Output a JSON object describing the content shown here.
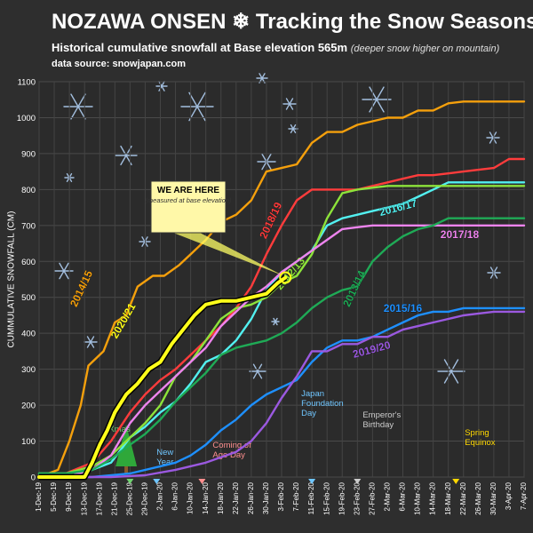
{
  "header": {
    "title": "NOZAWA ONSEN ❄ Tracking the Snow Seasons",
    "subtitle": "Historical cumulative snowfall at Base elevation 565m",
    "subtitle_note": "(deeper snow higher on mountain)",
    "source": "data source: snowjapan.com"
  },
  "callout": {
    "heading": "WE ARE HERE",
    "note": "(measured at base elevation)",
    "date": "4-Feb-20",
    "value": 555
  },
  "chart_data": {
    "type": "line",
    "title": "NOZAWA ONSEN ❄ Tracking the Snow Seasons",
    "ylabel": "CUMMULATIVE SNOWFALL  (CM)",
    "xlabel": "",
    "ylim": [
      0,
      1100
    ],
    "yticks": [
      0,
      100,
      200,
      300,
      400,
      500,
      600,
      700,
      800,
      900,
      1000,
      1100
    ],
    "xlim": [
      "1-Dec-19",
      "7-Apr-20"
    ],
    "x_tick_labels": [
      "1-Dec-19",
      "5-Dec-19",
      "9-Dec-19",
      "13-Dec-19",
      "17-Dec-19",
      "21-Dec-19",
      "25-Dec-19",
      "29-Dec-19",
      "2-Jan-20",
      "6-Jan-20",
      "10-Jan-20",
      "14-Jan-20",
      "18-Jan-20",
      "22-Jan-20",
      "26-Jan-20",
      "30-Jan-20",
      "3-Feb-20",
      "7-Feb-20",
      "11-Feb-20",
      "15-Feb-20",
      "19-Feb-20",
      "23-Feb-20",
      "27-Feb-20",
      "2-Mar-20",
      "6-Mar-20",
      "10-Mar-20",
      "14-Mar-20",
      "18-Mar-20",
      "22-Mar-20",
      "26-Mar-20",
      "30-Mar-20",
      "3-Apr-20",
      "7-Apr-20"
    ],
    "grid": true,
    "legend": "inline labels",
    "events": [
      {
        "label": "Xmas",
        "date": "25-Dec-19",
        "color": "#6fd36f",
        "marker": "#6fd36f"
      },
      {
        "label": "New Year",
        "date": "1-Jan-20",
        "color": "#6fc6ff",
        "marker": "#6fc6ff"
      },
      {
        "label": "Coming of Age Day",
        "date": "13-Jan-20",
        "color": "#ff8f8f",
        "marker": "#ff8f8f"
      },
      {
        "label": "Japan Foundation Day",
        "date": "11-Feb-20",
        "color": "#6fc6ff",
        "marker": "#6fc6ff"
      },
      {
        "label": "Emperor's Birthday",
        "date": "23-Feb-20",
        "color": "#cccccc",
        "marker": "#cccccc"
      },
      {
        "label": "Spring Equinox",
        "date": "20-Mar-20",
        "color": "#ffd800",
        "marker": "#ffd800"
      }
    ],
    "series": [
      {
        "name": "2014/15",
        "color": "#f5a00c",
        "label_date": "13-Dec-19",
        "label_value": 520,
        "label_angle": -65,
        "points": [
          [
            "1-Dec-19",
            0
          ],
          [
            "6-Dec-19",
            20
          ],
          [
            "9-Dec-19",
            100
          ],
          [
            "12-Dec-19",
            200
          ],
          [
            "14-Dec-19",
            310
          ],
          [
            "18-Dec-19",
            350
          ],
          [
            "21-Dec-19",
            430
          ],
          [
            "24-Dec-19",
            450
          ],
          [
            "27-Dec-19",
            530
          ],
          [
            "31-Dec-19",
            560
          ],
          [
            "3-Jan-20",
            560
          ],
          [
            "7-Jan-20",
            590
          ],
          [
            "10-Jan-20",
            620
          ],
          [
            "14-Jan-20",
            660
          ],
          [
            "18-Jan-20",
            710
          ],
          [
            "22-Jan-20",
            730
          ],
          [
            "26-Jan-20",
            770
          ],
          [
            "30-Jan-20",
            850
          ],
          [
            "3-Feb-20",
            860
          ],
          [
            "7-Feb-20",
            870
          ],
          [
            "11-Feb-20",
            930
          ],
          [
            "15-Feb-20",
            960
          ],
          [
            "19-Feb-20",
            960
          ],
          [
            "23-Feb-20",
            980
          ],
          [
            "27-Feb-20",
            990
          ],
          [
            "2-Mar-20",
            1000
          ],
          [
            "6-Mar-20",
            1000
          ],
          [
            "10-Mar-20",
            1020
          ],
          [
            "14-Mar-20",
            1020
          ],
          [
            "18-Mar-20",
            1040
          ],
          [
            "22-Mar-20",
            1045
          ],
          [
            "26-Mar-20",
            1045
          ],
          [
            "30-Mar-20",
            1045
          ],
          [
            "7-Apr-20",
            1045
          ]
        ]
      },
      {
        "name": "2018/19",
        "color": "#ff3c3c",
        "label_date": "1-Feb-20",
        "label_value": 710,
        "label_angle": -65,
        "points": [
          [
            "1-Dec-19",
            0
          ],
          [
            "8-Dec-19",
            10
          ],
          [
            "15-Dec-19",
            40
          ],
          [
            "20-Dec-19",
            100
          ],
          [
            "25-Dec-19",
            180
          ],
          [
            "29-Dec-19",
            230
          ],
          [
            "2-Jan-20",
            270
          ],
          [
            "6-Jan-20",
            300
          ],
          [
            "10-Jan-20",
            340
          ],
          [
            "14-Jan-20",
            380
          ],
          [
            "18-Jan-20",
            420
          ],
          [
            "22-Jan-20",
            470
          ],
          [
            "26-Jan-20",
            530
          ],
          [
            "30-Jan-20",
            620
          ],
          [
            "3-Feb-20",
            700
          ],
          [
            "7-Feb-20",
            770
          ],
          [
            "11-Feb-20",
            800
          ],
          [
            "15-Feb-20",
            800
          ],
          [
            "19-Feb-20",
            800
          ],
          [
            "23-Feb-20",
            800
          ],
          [
            "27-Feb-20",
            810
          ],
          [
            "2-Mar-20",
            820
          ],
          [
            "6-Mar-20",
            830
          ],
          [
            "10-Mar-20",
            840
          ],
          [
            "14-Mar-20",
            840
          ],
          [
            "18-Mar-20",
            845
          ],
          [
            "22-Mar-20",
            850
          ],
          [
            "26-Mar-20",
            855
          ],
          [
            "30-Mar-20",
            860
          ],
          [
            "3-Apr-20",
            885
          ],
          [
            "7-Apr-20",
            885
          ]
        ]
      },
      {
        "name": "2016/17",
        "color": "#52f0f0",
        "label_date": "5-Mar-20",
        "label_value": 740,
        "label_angle": -15,
        "points": [
          [
            "1-Dec-19",
            10
          ],
          [
            "8-Dec-19",
            10
          ],
          [
            "15-Dec-19",
            20
          ],
          [
            "20-Dec-19",
            40
          ],
          [
            "25-Dec-19",
            110
          ],
          [
            "29-Dec-19",
            140
          ],
          [
            "2-Jan-20",
            180
          ],
          [
            "6-Jan-20",
            210
          ],
          [
            "10-Jan-20",
            260
          ],
          [
            "14-Jan-20",
            320
          ],
          [
            "18-Jan-20",
            340
          ],
          [
            "22-Jan-20",
            380
          ],
          [
            "26-Jan-20",
            440
          ],
          [
            "30-Jan-20",
            520
          ],
          [
            "3-Feb-20",
            570
          ],
          [
            "7-Feb-20",
            600
          ],
          [
            "11-Feb-20",
            630
          ],
          [
            "15-Feb-20",
            700
          ],
          [
            "19-Feb-20",
            720
          ],
          [
            "23-Feb-20",
            730
          ],
          [
            "27-Feb-20",
            740
          ],
          [
            "2-Mar-20",
            750
          ],
          [
            "6-Mar-20",
            760
          ],
          [
            "10-Mar-20",
            780
          ],
          [
            "14-Mar-20",
            800
          ],
          [
            "18-Mar-20",
            820
          ],
          [
            "22-Mar-20",
            820
          ],
          [
            "26-Mar-20",
            820
          ],
          [
            "7-Apr-20",
            820
          ]
        ]
      },
      {
        "name": "2012/13",
        "color": "#8de33a",
        "label_date": "6-Feb-20",
        "label_value": 560,
        "label_angle": -50,
        "points": [
          [
            "1-Dec-19",
            10
          ],
          [
            "8-Dec-19",
            10
          ],
          [
            "15-Dec-19",
            30
          ],
          [
            "20-Dec-19",
            60
          ],
          [
            "25-Dec-19",
            110
          ],
          [
            "29-Dec-19",
            150
          ],
          [
            "2-Jan-20",
            200
          ],
          [
            "6-Jan-20",
            280
          ],
          [
            "10-Jan-20",
            320
          ],
          [
            "14-Jan-20",
            380
          ],
          [
            "18-Jan-20",
            440
          ],
          [
            "22-Jan-20",
            470
          ],
          [
            "26-Jan-20",
            480
          ],
          [
            "30-Jan-20",
            500
          ],
          [
            "3-Feb-20",
            540
          ],
          [
            "7-Feb-20",
            560
          ],
          [
            "11-Feb-20",
            620
          ],
          [
            "15-Feb-20",
            720
          ],
          [
            "19-Feb-20",
            790
          ],
          [
            "23-Feb-20",
            800
          ],
          [
            "27-Feb-20",
            805
          ],
          [
            "2-Mar-20",
            810
          ],
          [
            "6-Mar-20",
            810
          ],
          [
            "10-Mar-20",
            810
          ],
          [
            "14-Mar-20",
            810
          ],
          [
            "18-Mar-20",
            810
          ],
          [
            "7-Apr-20",
            810
          ]
        ]
      },
      {
        "name": "2017/18",
        "color": "#ee84ee",
        "label_date": "21-Mar-20",
        "label_value": 665,
        "label_angle": 0,
        "points": [
          [
            "1-Dec-19",
            0
          ],
          [
            "8-Dec-19",
            0
          ],
          [
            "15-Dec-19",
            20
          ],
          [
            "20-Dec-19",
            60
          ],
          [
            "25-Dec-19",
            150
          ],
          [
            "29-Dec-19",
            200
          ],
          [
            "2-Jan-20",
            240
          ],
          [
            "6-Jan-20",
            280
          ],
          [
            "10-Jan-20",
            320
          ],
          [
            "14-Jan-20",
            360
          ],
          [
            "18-Jan-20",
            420
          ],
          [
            "22-Jan-20",
            460
          ],
          [
            "26-Jan-20",
            500
          ],
          [
            "30-Jan-20",
            530
          ],
          [
            "3-Feb-20",
            570
          ],
          [
            "7-Feb-20",
            600
          ],
          [
            "11-Feb-20",
            630
          ],
          [
            "15-Feb-20",
            660
          ],
          [
            "19-Feb-20",
            690
          ],
          [
            "23-Feb-20",
            695
          ],
          [
            "27-Feb-20",
            700
          ],
          [
            "7-Apr-20",
            700
          ]
        ]
      },
      {
        "name": "2013/14",
        "color": "#1faa56",
        "label_date": "23-Feb-20",
        "label_value": 520,
        "label_angle": -65,
        "points": [
          [
            "1-Dec-19",
            10
          ],
          [
            "8-Dec-19",
            10
          ],
          [
            "15-Dec-19",
            20
          ],
          [
            "20-Dec-19",
            50
          ],
          [
            "25-Dec-19",
            90
          ],
          [
            "29-Dec-19",
            120
          ],
          [
            "2-Jan-20",
            160
          ],
          [
            "6-Jan-20",
            210
          ],
          [
            "10-Jan-20",
            250
          ],
          [
            "14-Jan-20",
            290
          ],
          [
            "18-Jan-20",
            340
          ],
          [
            "22-Jan-20",
            360
          ],
          [
            "26-Jan-20",
            370
          ],
          [
            "30-Jan-20",
            380
          ],
          [
            "3-Feb-20",
            400
          ],
          [
            "7-Feb-20",
            430
          ],
          [
            "11-Feb-20",
            470
          ],
          [
            "15-Feb-20",
            500
          ],
          [
            "19-Feb-20",
            520
          ],
          [
            "23-Feb-20",
            530
          ],
          [
            "27-Feb-20",
            600
          ],
          [
            "2-Mar-20",
            640
          ],
          [
            "6-Mar-20",
            670
          ],
          [
            "10-Mar-20",
            690
          ],
          [
            "14-Mar-20",
            700
          ],
          [
            "18-Mar-20",
            720
          ],
          [
            "7-Apr-20",
            720
          ]
        ]
      },
      {
        "name": "2015/16",
        "color": "#1e90ff",
        "label_date": "6-Mar-20",
        "label_value": 460,
        "label_angle": 0,
        "points": [
          [
            "1-Dec-19",
            0
          ],
          [
            "15-Dec-19",
            0
          ],
          [
            "25-Dec-19",
            10
          ],
          [
            "2-Jan-20",
            30
          ],
          [
            "6-Jan-20",
            40
          ],
          [
            "10-Jan-20",
            60
          ],
          [
            "14-Jan-20",
            90
          ],
          [
            "18-Jan-20",
            130
          ],
          [
            "22-Jan-20",
            160
          ],
          [
            "26-Jan-20",
            200
          ],
          [
            "30-Jan-20",
            230
          ],
          [
            "3-Feb-20",
            250
          ],
          [
            "7-Feb-20",
            270
          ],
          [
            "11-Feb-20",
            320
          ],
          [
            "15-Feb-20",
            360
          ],
          [
            "19-Feb-20",
            380
          ],
          [
            "23-Feb-20",
            380
          ],
          [
            "27-Feb-20",
            390
          ],
          [
            "2-Mar-20",
            410
          ],
          [
            "6-Mar-20",
            430
          ],
          [
            "10-Mar-20",
            450
          ],
          [
            "14-Mar-20",
            460
          ],
          [
            "18-Mar-20",
            460
          ],
          [
            "22-Mar-20",
            470
          ],
          [
            "7-Apr-20",
            470
          ]
        ]
      },
      {
        "name": "2019/20",
        "color": "#9b59e0",
        "label_date": "27-Feb-20",
        "label_value": 345,
        "label_angle": -15,
        "points": [
          [
            "1-Dec-19",
            0
          ],
          [
            "20-Dec-19",
            0
          ],
          [
            "29-Dec-19",
            5
          ],
          [
            "6-Jan-20",
            20
          ],
          [
            "14-Jan-20",
            40
          ],
          [
            "22-Jan-20",
            70
          ],
          [
            "26-Jan-20",
            100
          ],
          [
            "30-Jan-20",
            150
          ],
          [
            "3-Feb-20",
            220
          ],
          [
            "7-Feb-20",
            280
          ],
          [
            "11-Feb-20",
            350
          ],
          [
            "15-Feb-20",
            350
          ],
          [
            "19-Feb-20",
            370
          ],
          [
            "23-Feb-20",
            370
          ],
          [
            "27-Feb-20",
            390
          ],
          [
            "2-Mar-20",
            390
          ],
          [
            "6-Mar-20",
            410
          ],
          [
            "10-Mar-20",
            420
          ],
          [
            "14-Mar-20",
            430
          ],
          [
            "18-Mar-20",
            440
          ],
          [
            "22-Mar-20",
            450
          ],
          [
            "26-Mar-20",
            455
          ],
          [
            "30-Mar-20",
            460
          ],
          [
            "7-Apr-20",
            460
          ]
        ]
      },
      {
        "name": "2020/21",
        "color": "#ffff1a",
        "width": 4,
        "label_date": "24-Dec-19",
        "label_value": 430,
        "label_angle": -60,
        "points": [
          [
            "1-Dec-19",
            0
          ],
          [
            "13-Dec-19",
            0
          ],
          [
            "15-Dec-19",
            40
          ],
          [
            "17-Dec-19",
            90
          ],
          [
            "19-Dec-19",
            130
          ],
          [
            "21-Dec-19",
            180
          ],
          [
            "24-Dec-19",
            230
          ],
          [
            "27-Dec-19",
            260
          ],
          [
            "30-Dec-19",
            300
          ],
          [
            "2-Jan-20",
            320
          ],
          [
            "5-Jan-20",
            370
          ],
          [
            "8-Jan-20",
            410
          ],
          [
            "11-Jan-20",
            450
          ],
          [
            "14-Jan-20",
            480
          ],
          [
            "18-Jan-20",
            490
          ],
          [
            "22-Jan-20",
            490
          ],
          [
            "26-Jan-20",
            500
          ],
          [
            "30-Jan-20",
            510
          ],
          [
            "2-Feb-20",
            540
          ],
          [
            "4-Feb-20",
            555
          ]
        ]
      }
    ]
  }
}
